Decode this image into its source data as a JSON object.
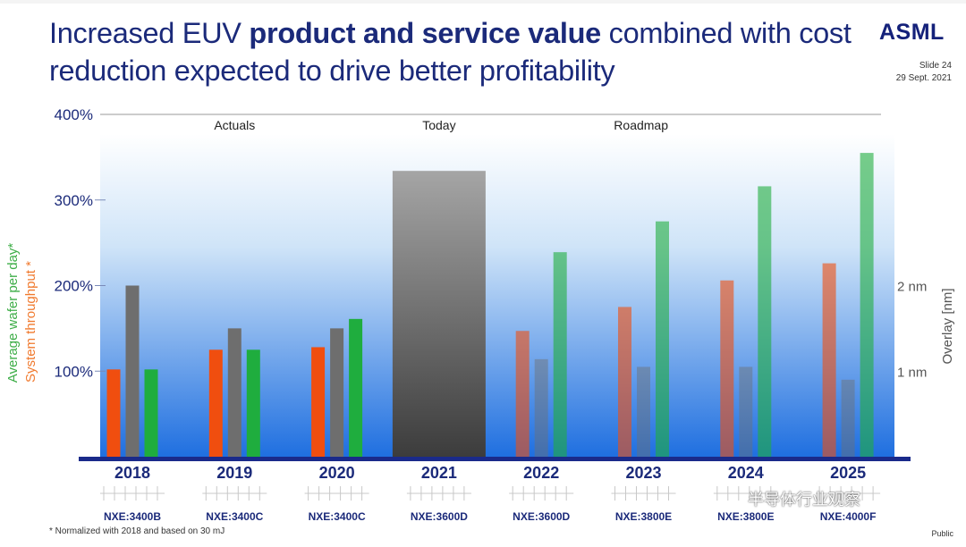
{
  "slide": {
    "title_pre": "Increased EUV ",
    "title_bold": "product and service value",
    "title_post": " combined with cost reduction expected to drive better profitability",
    "logo": "ASML",
    "slide_number": "Slide 24",
    "date": "29 Sept. 2021",
    "footnote": "* Normalized with 2018 and based on 30 mJ",
    "classification": "Public",
    "watermark": "半导体行业观察"
  },
  "chart_data": {
    "type": "bar",
    "title": "",
    "categories": [
      "2018",
      "2019",
      "2020",
      "2021",
      "2022",
      "2023",
      "2024",
      "2025"
    ],
    "products": [
      "NXE:3400B",
      "NXE:3400C",
      "NXE:3400C",
      "NXE:3600D",
      "NXE:3600D",
      "NXE:3800E",
      "NXE:3800E",
      "NXE:4000F"
    ],
    "phases": [
      {
        "label": "Actuals",
        "categories": [
          "2018",
          "2019",
          "2020"
        ]
      },
      {
        "label": "Today",
        "categories": [
          "2021"
        ]
      },
      {
        "label": "Roadmap",
        "categories": [
          "2022",
          "2023",
          "2024",
          "2025"
        ]
      }
    ],
    "ylim": [
      0,
      400
    ],
    "yticks": [
      100,
      200,
      300,
      400
    ],
    "ytick_labels": [
      "100%",
      "200%",
      "300%",
      "400%"
    ],
    "ylabel_primary": "Average wafer per day*",
    "ylabel_secondary": "System throughput *",
    "y2label": "Overlay [nm]",
    "y2ticks": [
      1,
      2
    ],
    "y2tick_labels": [
      "1 nm",
      "2 nm"
    ],
    "y2_scale_pct_per_nm": 100,
    "series": [
      {
        "name": "System throughput *",
        "axis": "left",
        "color": "#f04e0f",
        "values": [
          102,
          125,
          128,
          null,
          147,
          175,
          206,
          226
        ]
      },
      {
        "name": "Overlay [nm]",
        "axis": "right",
        "color": "#6e6e6e",
        "values": [
          2.0,
          1.5,
          1.5,
          null,
          1.14,
          1.05,
          1.05,
          0.9
        ]
      },
      {
        "name": "Average wafer per day*",
        "axis": "left",
        "color": "#1fad3e",
        "values": [
          102,
          125,
          161,
          null,
          239,
          275,
          316,
          355
        ]
      }
    ],
    "highlight": {
      "category": "2021",
      "value": 334,
      "color": "#555555"
    },
    "colors": {
      "throughput_label": "#f07a2f",
      "wafer_label": "#3fae49",
      "axis_text": "#1b2a7a",
      "baseline": "#1a2a8a",
      "background_top": "#ffffff",
      "background_bottom": "#1f6fe0"
    }
  }
}
